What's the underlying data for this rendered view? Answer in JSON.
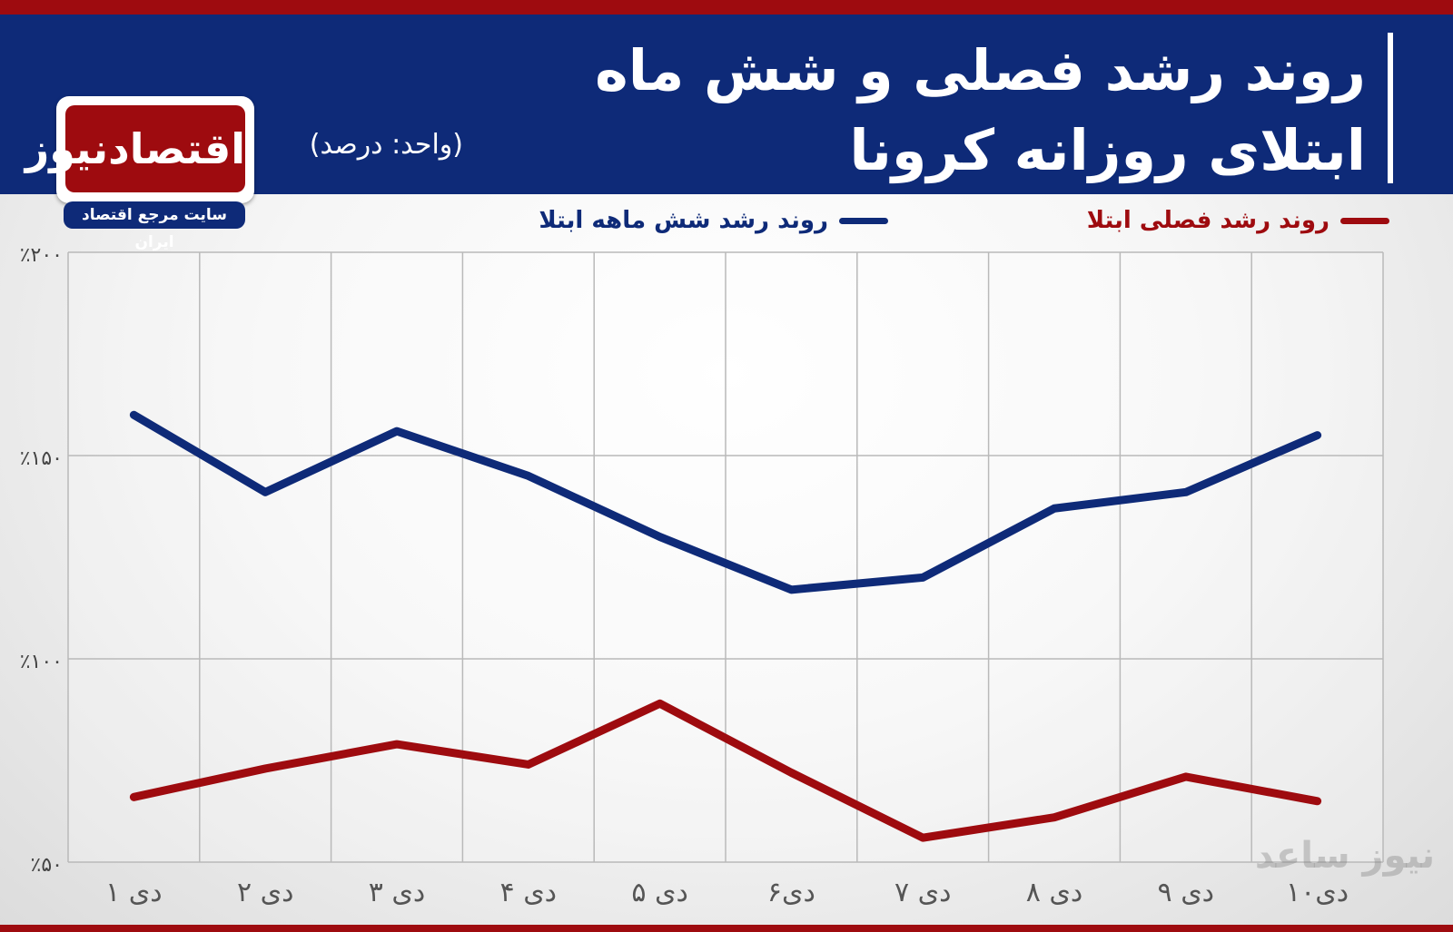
{
  "header": {
    "title": "روند رشد فصلی و شش ماه ابتلای روزانه کرونا",
    "unit": "(واحد: درصد)"
  },
  "logo": {
    "name": "اقتصادنیوز",
    "tagline": "سایت مرجع اقتصاد ایران"
  },
  "watermark": "نیوز ساعد",
  "colors": {
    "header_bg": "#0e2a78",
    "accent_red": "#9e0b0f",
    "series_blue": "#0e2a78",
    "series_red": "#9e0b0f"
  },
  "chart_data": {
    "type": "line",
    "title": "روند رشد فصلی و شش ماه ابتلای روزانه کرونا",
    "ylabel": "(واحد: درصد)",
    "xlabel": "",
    "ylim": [
      50,
      200
    ],
    "yticks": [
      50,
      100,
      150,
      200
    ],
    "ytick_labels": [
      "٪۵۰",
      "٪۱۰۰",
      "٪۱۵۰",
      "٪۲۰۰"
    ],
    "categories": [
      "۱ دی",
      "۲ دی",
      "۳ دی",
      "۴ دی",
      "۵ دی",
      "۶دی",
      "۷ دی",
      "۸ دی",
      "۹ دی",
      "۱۰دی"
    ],
    "grid": true,
    "legend_position": "top",
    "series": [
      {
        "name": "روند رشد شش ماهه ابتلا",
        "color": "#0e2a78",
        "values": [
          160,
          141,
          156,
          145,
          130,
          117,
          120,
          137,
          141,
          155
        ]
      },
      {
        "name": "روند رشد فصلی ابتلا",
        "color": "#9e0b0f",
        "values": [
          66,
          73,
          79,
          74,
          89,
          72,
          56,
          61,
          71,
          65
        ]
      }
    ]
  }
}
